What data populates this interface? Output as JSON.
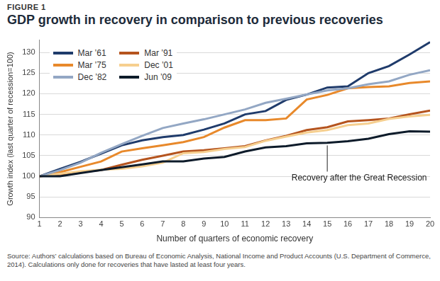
{
  "chart_data": {
    "type": "line",
    "figure_label": "FIGURE 1",
    "title": "GDP growth in recovery in comparison to previous recoveries",
    "x_label": "Number of quarters of economic recovery",
    "y_label": "Growth index (last quarter of recession=100)",
    "x": [
      1,
      2,
      3,
      4,
      5,
      6,
      7,
      8,
      9,
      10,
      11,
      12,
      13,
      14,
      15,
      16,
      17,
      18,
      19,
      20
    ],
    "xlim": [
      1,
      20
    ],
    "xticks": [
      1,
      2,
      3,
      4,
      5,
      6,
      7,
      8,
      9,
      10,
      11,
      12,
      13,
      14,
      15,
      16,
      17,
      18,
      19,
      20
    ],
    "ylim": [
      90,
      133
    ],
    "yticks": [
      90,
      95,
      100,
      105,
      110,
      115,
      120,
      125,
      130
    ],
    "grid": true,
    "legend": "upper left",
    "series": [
      {
        "name": "Mar ’61",
        "color": "#1f3b6b",
        "values": [
          100,
          101.8,
          103.5,
          105.5,
          107.5,
          108.7,
          109.5,
          110,
          111.3,
          112.8,
          115,
          115.8,
          118.5,
          119.8,
          121.5,
          121.8,
          125,
          126.7,
          129.5,
          132.5
        ]
      },
      {
        "name": "Mar ’91",
        "color": "#b5541e",
        "values": [
          100,
          100.5,
          101,
          101.5,
          102.8,
          104,
          105,
          106,
          106.3,
          106.8,
          107.3,
          108.7,
          109.8,
          111.2,
          111.9,
          113.3,
          113.6,
          114,
          115,
          115.9
        ]
      },
      {
        "name": "Mar ’75",
        "color": "#e8892b",
        "values": [
          100,
          101,
          102.3,
          103.6,
          106,
          106.8,
          107.5,
          108.3,
          109.5,
          111.8,
          113.6,
          113.6,
          114,
          118.6,
          119.7,
          121.3,
          121.6,
          121.8,
          122.6,
          123
        ]
      },
      {
        "name": "Dec ’01",
        "color": "#f6cf8f",
        "values": [
          100,
          100.6,
          101.2,
          101.6,
          101.8,
          102.4,
          103.3,
          105.6,
          105.9,
          106.6,
          107.1,
          108.6,
          109.6,
          110.6,
          111.2,
          112.4,
          112.8,
          113.9,
          114.5,
          114.9
        ]
      },
      {
        "name": "Dec ’82",
        "color": "#93a7c4",
        "values": [
          100,
          101.5,
          103.3,
          105.7,
          107.8,
          109.8,
          111.7,
          112.8,
          113.8,
          115,
          116.2,
          117.8,
          118.8,
          119.8,
          120.8,
          121.3,
          122.3,
          123,
          124.6,
          125.7
        ]
      },
      {
        "name": "Jun ’09",
        "color": "#0d1b2a",
        "values": [
          100,
          100,
          100.8,
          101.5,
          102.2,
          102.9,
          103.6,
          103.6,
          104.3,
          104.7,
          106,
          107,
          107.3,
          108,
          108.1,
          108.5,
          109.1,
          110.2,
          110.9,
          110.8
        ]
      }
    ],
    "annotations": [
      {
        "text": "Recovery after the Great Recession",
        "x": 15,
        "y": 108
      }
    ],
    "source": "Source: Authors’ calculations based on Bureau of Economic Analysis, National Income and Product Accounts (U.S. Department of Commerce, 2014). Calculations only done for recoveries that have lasted at least four years."
  }
}
